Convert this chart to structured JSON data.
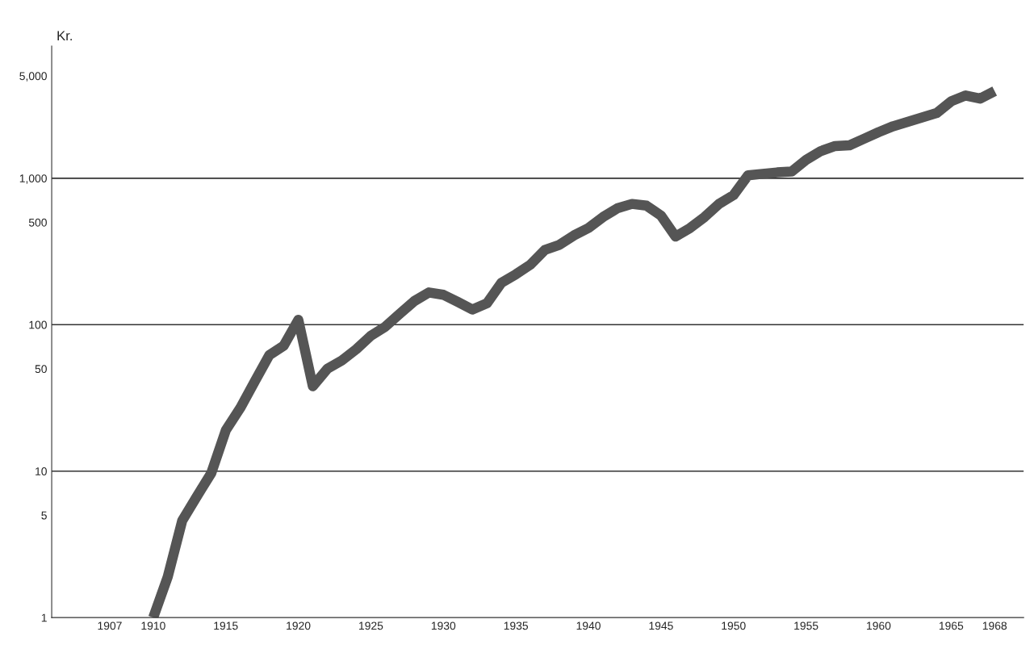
{
  "chart_data": {
    "type": "line",
    "ylabel": "Kr.",
    "log": true,
    "x": [
      1910,
      1911,
      1912,
      1913,
      1914,
      1915,
      1916,
      1917,
      1918,
      1919,
      1920,
      1921,
      1922,
      1923,
      1924,
      1925,
      1926,
      1927,
      1928,
      1929,
      1930,
      1931,
      1932,
      1933,
      1934,
      1935,
      1936,
      1937,
      1938,
      1939,
      1940,
      1941,
      1942,
      1943,
      1944,
      1945,
      1946,
      1947,
      1948,
      1949,
      1950,
      1951,
      1952,
      1953,
      1954,
      1955,
      1956,
      1957,
      1958,
      1959,
      1960,
      1961,
      1962,
      1963,
      1964,
      1965,
      1966,
      1967,
      1968
    ],
    "series": [
      {
        "color": "#555555",
        "values": [
          1.0,
          1.9,
          4.6,
          6.7,
          9.7,
          19,
          27,
          41,
          62,
          72,
          108,
          38,
          50,
          57,
          68,
          84,
          97,
          119,
          145,
          166,
          160,
          143,
          127,
          140,
          193,
          221,
          257,
          324,
          351,
          407,
          457,
          543,
          624,
          668,
          650,
          556,
          400,
          457,
          543,
          668,
          767,
          1047,
          1072,
          1096,
          1110,
          1333,
          1531,
          1660,
          1680,
          1862,
          2065,
          2265,
          2427,
          2600,
          2786,
          3350,
          3673,
          3500,
          3936
        ]
      }
    ],
    "xlim": [
      1903,
      1970
    ],
    "ylim": [
      1,
      8000
    ],
    "xticks": [
      1907,
      1910,
      1915,
      1920,
      1925,
      1930,
      1935,
      1940,
      1945,
      1950,
      1955,
      1960,
      1965,
      1968
    ],
    "yticks": [
      1,
      5,
      10,
      50,
      100,
      500,
      {
        "value": 1000,
        "label": "1,000"
      },
      {
        "value": 5000,
        "label": "5,000"
      }
    ],
    "ref_lines": [
      {
        "axis": "y",
        "value": 10,
        "color": "#333333"
      },
      {
        "axis": "y",
        "value": 100,
        "color": "#333333"
      },
      {
        "axis": "y",
        "value": 1000,
        "color": "#333333"
      }
    ],
    "grid": false,
    "line_style": "solid",
    "marker": "none"
  }
}
